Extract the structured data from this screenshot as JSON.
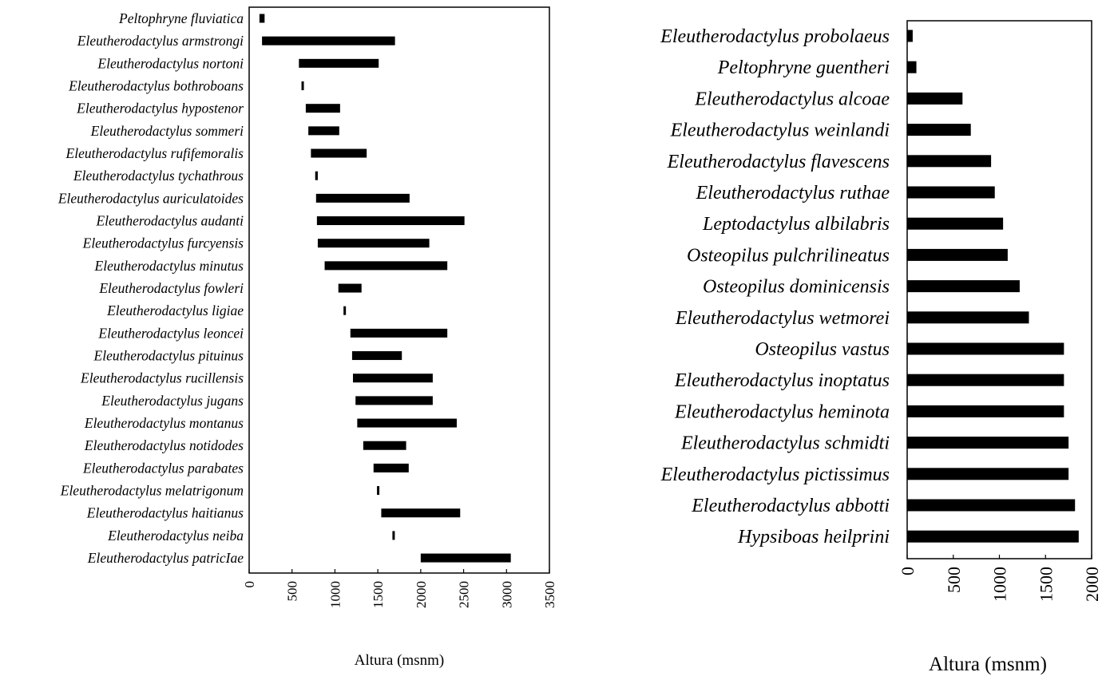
{
  "chart_data": [
    {
      "type": "bar",
      "subtype": "floating-range-horizontal",
      "xlabel": "Altura (msnm)",
      "xlim": [
        0,
        3500
      ],
      "xticks": [
        0,
        500,
        1000,
        1500,
        2000,
        2500,
        3000,
        3500
      ],
      "grid": false,
      "bar_color": "#000000",
      "categories": [
        "Peltophryne fluviatica",
        "Eleutherodactylus armstrongi",
        "Eleutherodactylus nortoni",
        "Eleutherodactylus bothroboans",
        "Eleutherodactylus hypostenor",
        "Eleutherodactylus sommeri",
        "Eleutherodactylus rufifemoralis",
        "Eleutherodactylus tychathrous",
        "Eleutherodactylus auriculatoides",
        "Eleutherodactylus audanti",
        "Eleutherodactylus furcyensis",
        "Eleutherodactylus minutus",
        "Eleutherodactylus fowleri",
        "Eleutherodactylus ligiae",
        "Eleutherodactylus leoncei",
        "Eleutherodactylus pituinus",
        "Eleutherodactylus rucillensis",
        "Eleutherodactylus jugans",
        "Eleutherodactylus montanus",
        "Eleutherodactylus notidodes",
        "Eleutherodactylus parabates",
        "Eleutherodactylus melatrigonum",
        "Eleutherodactylus haitianus",
        "Eleutherodactylus neiba",
        "Eleutherodactylus patricIae"
      ],
      "ranges": [
        [
          120,
          180
        ],
        [
          150,
          1700
        ],
        [
          580,
          1510
        ],
        [
          610,
          630
        ],
        [
          660,
          1060
        ],
        [
          690,
          1050
        ],
        [
          720,
          1370
        ],
        [
          770,
          800
        ],
        [
          780,
          1870
        ],
        [
          790,
          2510
        ],
        [
          800,
          2100
        ],
        [
          880,
          2310
        ],
        [
          1040,
          1310
        ],
        [
          1100,
          1120
        ],
        [
          1180,
          2310
        ],
        [
          1200,
          1780
        ],
        [
          1210,
          2140
        ],
        [
          1240,
          2140
        ],
        [
          1260,
          2420
        ],
        [
          1330,
          1830
        ],
        [
          1450,
          1860
        ],
        [
          1490,
          1510
        ],
        [
          1540,
          2460
        ],
        [
          1670,
          1690
        ],
        [
          2000,
          3050
        ]
      ]
    },
    {
      "type": "bar",
      "subtype": "horizontal",
      "xlabel": "Altura (msnm)",
      "xlim": [
        0,
        2000
      ],
      "xticks": [
        0,
        500,
        1000,
        1500,
        2000
      ],
      "grid": false,
      "bar_color": "#000000",
      "categories": [
        "Eleutherodactylus probolaeus",
        "Peltophryne guentheri",
        "Eleutherodactylus alcoae",
        "Eleutherodactylus weinlandi",
        "Eleutherodactylus flavescens",
        "Eleutherodactylus ruthae",
        "Leptodactylus albilabris",
        "Osteopilus pulchrilineatus",
        "Osteopilus dominicensis",
        "Eleutherodactylus wetmorei",
        "Osteopilus vastus",
        "Eleutherodactylus inoptatus",
        "Eleutherodactylus heminota",
        "Eleutherodactylus schmidti",
        "Eleutherodactylus pictissimus",
        "Eleutherodactylus abbotti",
        "Hypsiboas heilprini"
      ],
      "values": [
        60,
        100,
        600,
        690,
        910,
        950,
        1040,
        1090,
        1220,
        1320,
        1700,
        1700,
        1700,
        1750,
        1750,
        1820,
        1860
      ]
    }
  ]
}
